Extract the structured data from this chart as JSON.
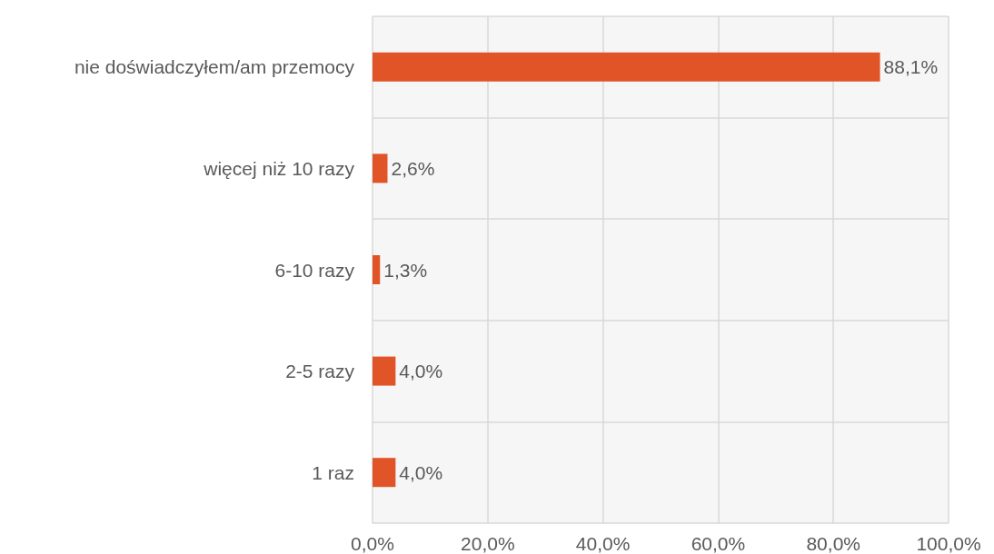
{
  "chart_data": {
    "type": "bar",
    "orientation": "horizontal",
    "categories": [
      "nie doświadczyłem/am przemocy",
      "więcej niż 10 razy",
      "6-10 razy",
      "2-5 razy",
      "1 raz"
    ],
    "values": [
      88.1,
      2.6,
      1.3,
      4.0,
      4.0
    ],
    "value_labels": [
      "88,1%",
      "2,6%",
      "1,3%",
      "4,0%",
      "4,0%"
    ],
    "color": "#e05428",
    "xlim": [
      0,
      100
    ],
    "xticks": [
      {
        "value": 0,
        "label": "0,0%"
      },
      {
        "value": 20,
        "label": "20,0%"
      },
      {
        "value": 40,
        "label": "40,0%"
      },
      {
        "value": 60,
        "label": "60,0%"
      },
      {
        "value": 80,
        "label": "80,0%"
      },
      {
        "value": 100,
        "label": "100,0%"
      }
    ],
    "grid": true
  }
}
